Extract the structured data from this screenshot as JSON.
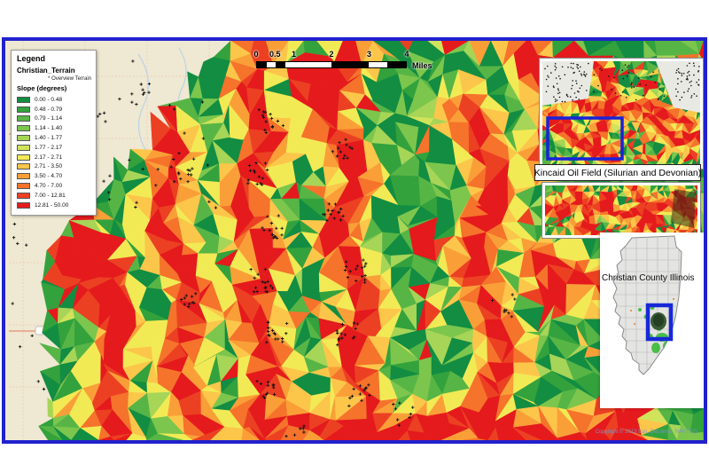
{
  "map": {
    "frame_color": "#2121cd",
    "scalebar": {
      "labels": [
        "0",
        "0.5",
        "1",
        "2",
        "3",
        "4"
      ],
      "unit": "Miles"
    },
    "legend": {
      "title": "Legend",
      "layer": "Christian_Terrain",
      "sublayer": "* Overview Terrain",
      "field": "Slope (degrees)",
      "classes": [
        {
          "label": "0.00 - 0.48",
          "color": "#128d42"
        },
        {
          "label": "0.48 - 0.79",
          "color": "#33a23c"
        },
        {
          "label": "0.79 - 1.14",
          "color": "#57b546"
        },
        {
          "label": "1.14 - 1.40",
          "color": "#7cc64d"
        },
        {
          "label": "1.40 - 1.77",
          "color": "#a6d557"
        },
        {
          "label": "1.77 - 2.17",
          "color": "#d1e35b"
        },
        {
          "label": "2.17 - 2.71",
          "color": "#f2ea55"
        },
        {
          "label": "2.71 - 3.50",
          "color": "#fcc64a"
        },
        {
          "label": "3.50 - 4.70",
          "color": "#fa9f38"
        },
        {
          "label": "4.70 - 7.00",
          "color": "#f5732b"
        },
        {
          "label": "7.00 - 12.81",
          "color": "#ec4023"
        },
        {
          "label": "12.81 - 50.00",
          "color": "#e51a1d"
        }
      ]
    },
    "insets": {
      "kincaid_label": "Kincaid Oil Field (Silurian and Devonian)",
      "state_label": "Christian County Illinois"
    },
    "attribution": "Copyright:© 2013 Esri, DeLorme, NAVTEQ"
  }
}
